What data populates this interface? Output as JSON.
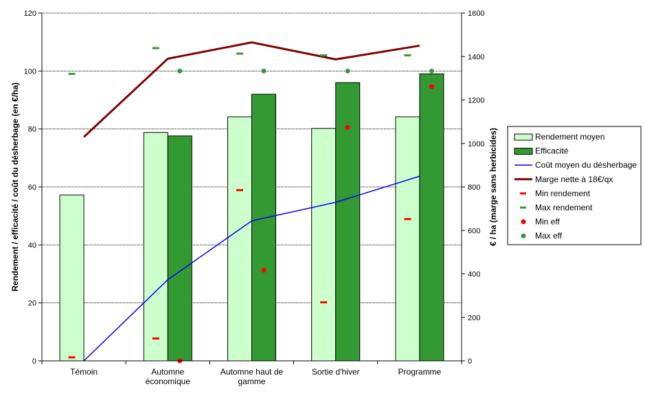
{
  "chart_data": {
    "type": "bar",
    "categories": [
      [
        "Témoin"
      ],
      [
        "Automne",
        "économique"
      ],
      [
        "Automne haut de",
        "gamme"
      ],
      [
        "Sortie d'hiver"
      ],
      [
        "Programme"
      ]
    ],
    "ylabel": "Rendement / efficacité / coût du désherbage (en €/ha)",
    "y2label": "€ / ha (marge sans herbicides)",
    "ylim": [
      0,
      120
    ],
    "yticks": [
      0,
      20,
      40,
      60,
      80,
      100,
      120
    ],
    "y2lim": [
      0,
      1600
    ],
    "y2ticks": [
      0,
      200,
      400,
      600,
      800,
      1000,
      1200,
      1400,
      1600
    ],
    "grid": true,
    "legend_position": "right",
    "series": [
      {
        "name": "Rendement moyen",
        "kind": "bar",
        "axis": "left",
        "color": "#ccffcc",
        "values": [
          57.2,
          78.8,
          84.2,
          80.2,
          84.2
        ]
      },
      {
        "name": "Efficacité",
        "kind": "bar",
        "axis": "left",
        "color": "#339933",
        "values": [
          null,
          77.6,
          92.0,
          96.0,
          99.0
        ]
      },
      {
        "name": "Coût moyen du désherbage",
        "kind": "line",
        "axis": "left",
        "color": "#0000ff",
        "values": [
          0,
          28,
          48.3,
          54.7,
          63.7
        ]
      },
      {
        "name": "Marge nette à 18€/qx",
        "kind": "line",
        "axis": "right",
        "color": "#800000",
        "values": [
          1030,
          1390,
          1465,
          1387,
          1450
        ]
      },
      {
        "name": "Min rendement",
        "kind": "marker",
        "axis": "left",
        "marker": "dash",
        "color": "#ff0000",
        "values": [
          1.2,
          7.7,
          58.9,
          20.2,
          48.9
        ]
      },
      {
        "name": "Max rendement",
        "kind": "marker",
        "axis": "left",
        "marker": "dash",
        "color": "#339933",
        "values": [
          99.0,
          107.9,
          106.0,
          105.4,
          105.4
        ]
      },
      {
        "name": "Min eff",
        "kind": "marker",
        "axis": "left",
        "marker": "dot",
        "color": "#ff0000",
        "values": [
          null,
          0,
          31.3,
          80.5,
          94.6
        ]
      },
      {
        "name": "Max eff",
        "kind": "marker",
        "axis": "left",
        "marker": "dot",
        "color": "#339933",
        "values": [
          null,
          100,
          100,
          100,
          100
        ]
      }
    ]
  }
}
